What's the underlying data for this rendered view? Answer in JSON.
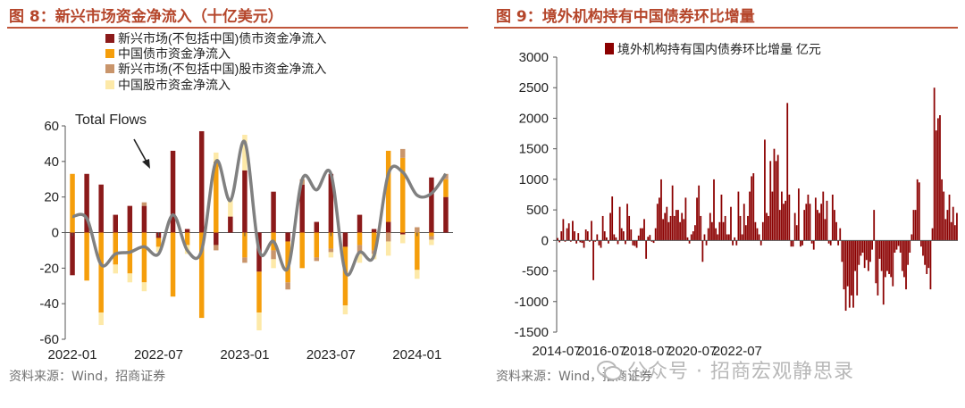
{
  "left_panel": {
    "title": "图 8：新兴市场资金净流入（十亿美元）",
    "source": "资料来源：Wind，招商证券",
    "annotation": "Total Flows"
  },
  "right_panel": {
    "title": "图 9：境外机构持有中国债券环比增量",
    "source": "资料来源：Wind，招商证券"
  },
  "watermark": "公众号 · 招商宏观静思录",
  "colors": {
    "title": "#b5462b",
    "em_bond": "#8b1a1a",
    "china_bond": "#f59e0b",
    "em_equity": "#c9956b",
    "china_equity": "#fde9a8",
    "total_line": "#808080",
    "right_bar": "#8b0000"
  },
  "chart_data": [
    {
      "type": "bar",
      "stacked": true,
      "categories": [
        "2022-01",
        "2022-02",
        "2022-03",
        "2022-04",
        "2022-05",
        "2022-06",
        "2022-07",
        "2022-08",
        "2022-09",
        "2022-10",
        "2022-11",
        "2022-12",
        "2023-01",
        "2023-02",
        "2023-03",
        "2023-04",
        "2023-05",
        "2023-06",
        "2023-07",
        "2023-08",
        "2023-09",
        "2023-10",
        "2023-11",
        "2023-12",
        "2024-01",
        "2024-02",
        "2024-03"
      ],
      "x_tick_labels": [
        "2022-01",
        "2022-07",
        "2023-01",
        "2023-07",
        "2024-01"
      ],
      "series": [
        {
          "name": "新兴市场(不包括中国)债市资金净流入",
          "values": [
            -24,
            33,
            27,
            10,
            15,
            15,
            -3,
            46,
            2,
            57,
            -7,
            9,
            35,
            -22,
            23,
            -5,
            27,
            6,
            33,
            -8,
            10,
            2,
            6,
            -1,
            0,
            31,
            20
          ]
        },
        {
          "name": "中国债市资金净流入",
          "values": [
            33,
            -27,
            -45,
            -18,
            -23,
            -28,
            -5,
            -36,
            -7,
            -48,
            40,
            0,
            -14,
            -23,
            -10,
            -23,
            -20,
            -14,
            -9,
            -33,
            -7,
            -10,
            40,
            42,
            -21,
            -2,
            10
          ]
        },
        {
          "name": "新兴市场(不包括中国)股市资金净流入",
          "values": [
            0,
            0,
            0,
            0,
            0,
            2,
            0,
            0,
            0,
            0,
            -3,
            0,
            -3,
            0,
            -5,
            -4,
            3,
            -2,
            -2,
            0,
            -5,
            -2,
            -5,
            5,
            3,
            -2,
            3
          ]
        },
        {
          "name": "中国股市资金净流入",
          "values": [
            0,
            0,
            -7,
            -5,
            -5,
            -5,
            -3,
            0,
            -5,
            0,
            5,
            10,
            20,
            -10,
            -5,
            0,
            0,
            0,
            -3,
            -5,
            -5,
            -3,
            -8,
            -5,
            -5,
            -3,
            0
          ]
        }
      ],
      "total_flows": [
        9,
        8,
        -18,
        -12,
        -11,
        -8,
        -12,
        10,
        -10,
        -10,
        40,
        18,
        51,
        -10,
        -5,
        -20,
        30,
        24,
        33,
        -22,
        -11,
        -13,
        33,
        34,
        21,
        22,
        33
      ],
      "ylim": [
        -60,
        60
      ],
      "yticks": [
        -60,
        -40,
        -20,
        0,
        20,
        40,
        60
      ]
    },
    {
      "type": "bar",
      "series": [
        {
          "name": "境外机构持有国内债券环比增量 亿元"
        }
      ],
      "start": "2014-07",
      "values": [
        40,
        -30,
        150,
        350,
        -20,
        200,
        280,
        -20,
        320,
        150,
        -50,
        120,
        -30,
        -40,
        -120,
        180,
        150,
        -20,
        320,
        -650,
        -20,
        100,
        -80,
        -120,
        400,
        150,
        50,
        -50,
        450,
        720,
        100,
        50,
        -60,
        550,
        200,
        150,
        -60,
        600,
        400,
        180,
        -80,
        -90,
        -120,
        80,
        200,
        200,
        350,
        -300,
        60,
        90,
        -20,
        -40,
        200,
        600,
        700,
        1000,
        350,
        450,
        550,
        300,
        400,
        900,
        400,
        500,
        500,
        300,
        450,
        350,
        700,
        50,
        -50,
        100,
        150,
        250,
        700,
        900,
        400,
        -350,
        100,
        -80,
        200,
        450,
        300,
        1000,
        200,
        100,
        300,
        750,
        300,
        400,
        100,
        100,
        550,
        -80,
        50,
        -80,
        800,
        400,
        100,
        600,
        250,
        400,
        800,
        1050,
        1100,
        300,
        200,
        100,
        -80,
        300,
        1650,
        450,
        400,
        1300,
        800,
        1500,
        1300,
        1400,
        500,
        800,
        600,
        650,
        2250,
        750,
        -100,
        -100,
        450,
        250,
        850,
        -100,
        -80,
        500,
        600,
        750,
        600,
        -50,
        -150,
        700,
        500,
        450,
        600,
        800,
        350,
        650,
        -50,
        -80,
        750,
        500,
        300,
        -80,
        200,
        -350,
        -800,
        -1150,
        -750,
        -1100,
        -900,
        -1100,
        -500,
        -900,
        -400,
        -250,
        -200,
        -450,
        -320,
        -500,
        -350,
        -150,
        500,
        -700,
        -900,
        -300,
        -500,
        -1050,
        -600,
        -500,
        -550,
        -600,
        -750,
        -200,
        -150,
        -90,
        -200,
        -500,
        -600,
        -800,
        -400,
        -200,
        100,
        500,
        500,
        1000,
        950,
        -100,
        -250,
        -400,
        -550,
        -450,
        -800,
        200,
        2500,
        1800,
        2000,
        2050,
        1000,
        800,
        350,
        500,
        750,
        300,
        550,
        250,
        450
      ],
      "x_tick_labels": [
        "2014-07",
        "2016-07",
        "2018-07",
        "2020-07",
        "2022-07"
      ],
      "ylim": [
        -1500,
        3000
      ],
      "yticks": [
        -1500,
        -1000,
        -500,
        0,
        500,
        1000,
        1500,
        2000,
        2500,
        3000
      ]
    }
  ]
}
